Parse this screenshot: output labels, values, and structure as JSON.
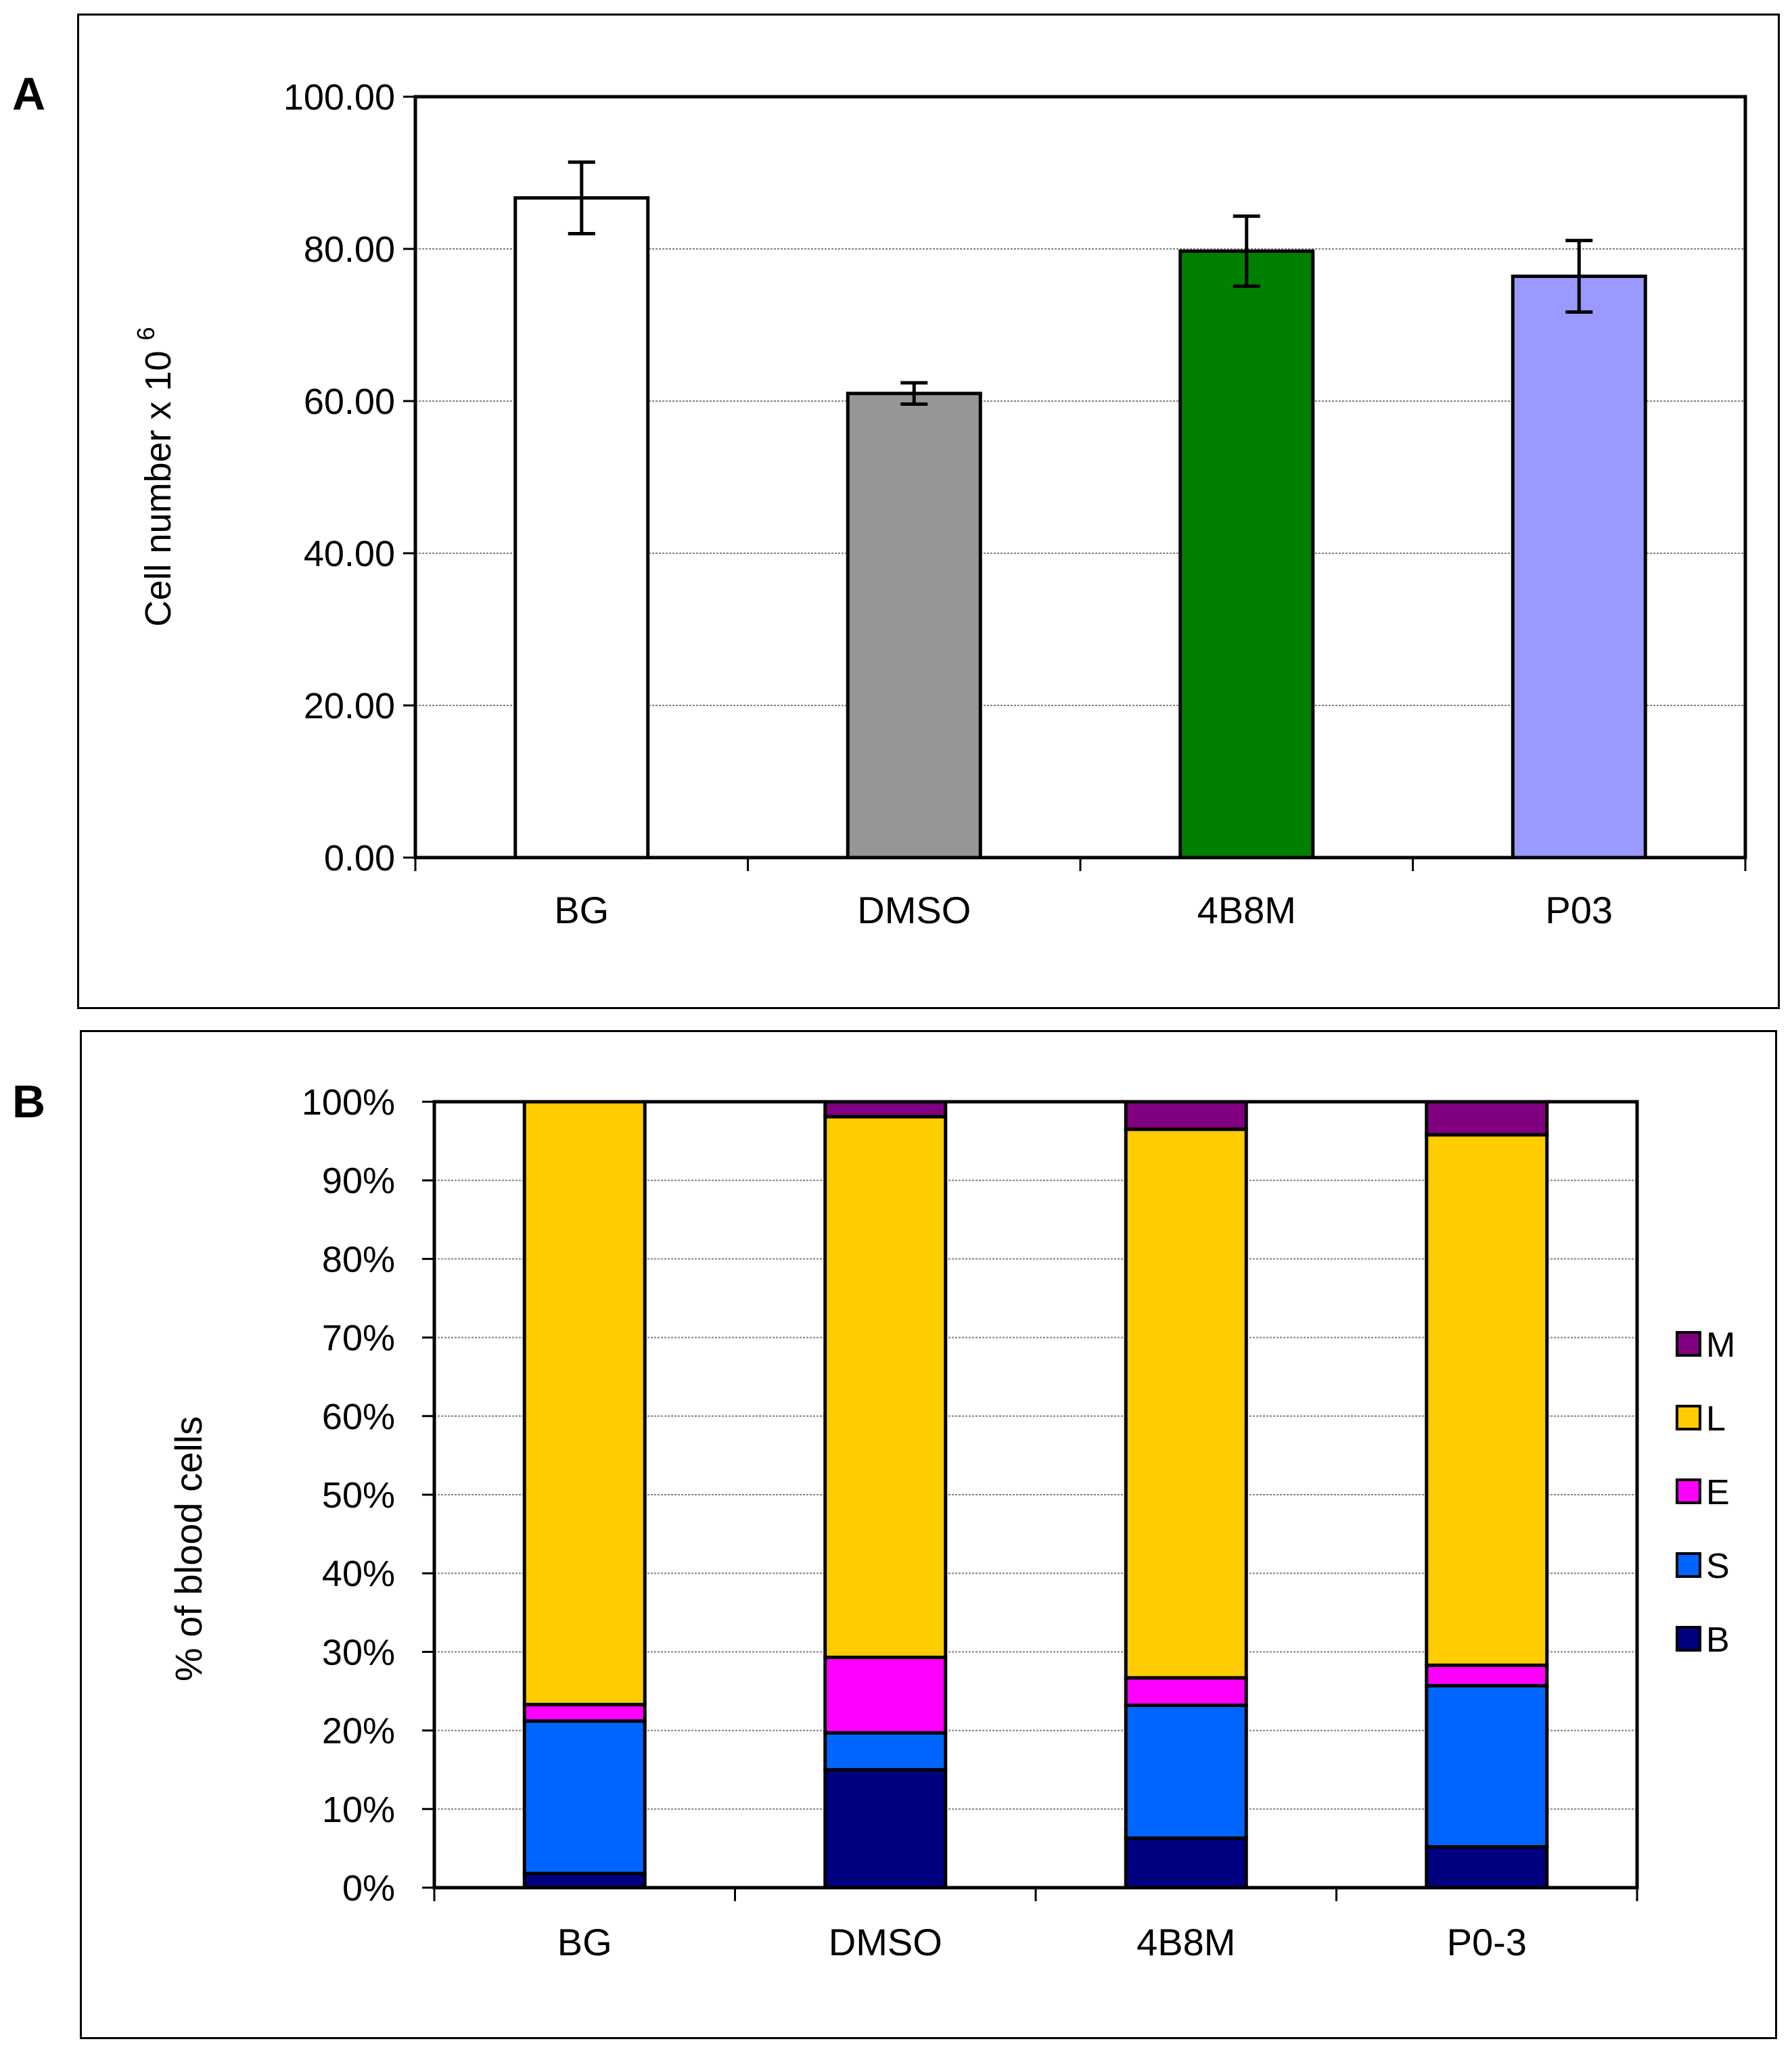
{
  "panels": {
    "a_label": "A",
    "b_label": "B"
  },
  "chart_data": [
    {
      "type": "bar",
      "panel": "A",
      "ylabel": "Cell number x 10",
      "ylabel_superscript": "6",
      "ylim": [
        0,
        100
      ],
      "yticks": [
        0,
        20,
        40,
        60,
        80,
        100
      ],
      "ytick_labels": [
        "0.00",
        "20.00",
        "40.00",
        "60.00",
        "80.00",
        "100.00"
      ],
      "grid": true,
      "categories": [
        "BG",
        "DMSO",
        "4B8M",
        "P03"
      ],
      "values": [
        86.7,
        61.0,
        79.7,
        76.4
      ],
      "errors": [
        4.7,
        1.4,
        4.6,
        4.7
      ],
      "colors": [
        "#ffffff",
        "#969696",
        "#008000",
        "#9999ff"
      ]
    },
    {
      "type": "bar",
      "stacked": true,
      "panel": "B",
      "ylabel": "% of blood cells",
      "ylim": [
        0,
        100
      ],
      "yticks": [
        0,
        10,
        20,
        30,
        40,
        50,
        60,
        70,
        80,
        90,
        100
      ],
      "ytick_labels": [
        "0%",
        "10%",
        "20%",
        "30%",
        "40%",
        "50%",
        "60%",
        "70%",
        "80%",
        "90%",
        "100%"
      ],
      "grid": true,
      "categories": [
        "BG",
        "DMSO",
        "4B8M",
        "P0-3"
      ],
      "legend_position": "right",
      "series": [
        {
          "name": "B",
          "color": "#000080",
          "values": [
            1.8,
            15.0,
            6.3,
            5.2
          ]
        },
        {
          "name": "S",
          "color": "#0066ff",
          "values": [
            19.4,
            4.7,
            16.9,
            20.5
          ]
        },
        {
          "name": "E",
          "color": "#ff00ff",
          "values": [
            2.1,
            9.6,
            3.5,
            2.6
          ]
        },
        {
          "name": "L",
          "color": "#ffcc00",
          "values": [
            76.7,
            68.8,
            69.8,
            67.5
          ]
        },
        {
          "name": "M",
          "color": "#800080",
          "values": [
            0.0,
            1.9,
            3.5,
            4.2
          ]
        }
      ]
    }
  ]
}
